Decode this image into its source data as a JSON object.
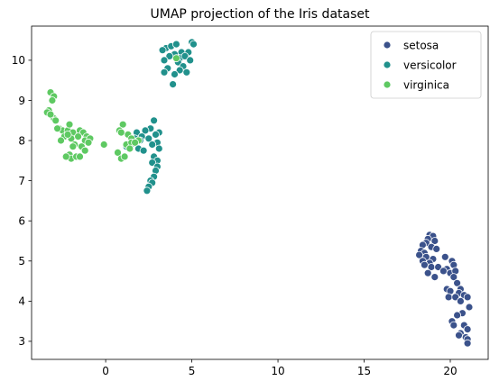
{
  "chart_data": {
    "type": "scatter",
    "title": "UMAP projection of the Iris dataset",
    "xlabel": "",
    "ylabel": "",
    "xlim": [
      -4.3,
      22.2
    ],
    "ylim": [
      2.55,
      10.85
    ],
    "xticks": [
      0,
      5,
      10,
      15,
      20
    ],
    "yticks": [
      3,
      4,
      5,
      6,
      7,
      8,
      9,
      10
    ],
    "grid": false,
    "legend_position": "top-right",
    "series": [
      {
        "name": "setosa",
        "color": "#3b528b",
        "points": [
          [
            18.8,
            5.65
          ],
          [
            19.0,
            5.62
          ],
          [
            18.7,
            5.55
          ],
          [
            19.1,
            5.5
          ],
          [
            18.6,
            5.45
          ],
          [
            18.4,
            5.4
          ],
          [
            18.9,
            5.35
          ],
          [
            19.2,
            5.3
          ],
          [
            18.3,
            5.25
          ],
          [
            18.5,
            5.2
          ],
          [
            18.2,
            5.15
          ],
          [
            18.6,
            5.1
          ],
          [
            19.0,
            5.05
          ],
          [
            19.7,
            5.1
          ],
          [
            18.4,
            5.0
          ],
          [
            18.8,
            4.95
          ],
          [
            18.5,
            4.9
          ],
          [
            18.9,
            4.85
          ],
          [
            19.3,
            4.85
          ],
          [
            20.1,
            5.0
          ],
          [
            20.2,
            4.9
          ],
          [
            19.8,
            4.8
          ],
          [
            19.6,
            4.75
          ],
          [
            20.0,
            4.7
          ],
          [
            18.7,
            4.7
          ],
          [
            19.1,
            4.6
          ],
          [
            20.3,
            4.75
          ],
          [
            20.2,
            4.6
          ],
          [
            20.4,
            4.45
          ],
          [
            20.6,
            4.3
          ],
          [
            19.8,
            4.3
          ],
          [
            20.0,
            4.25
          ],
          [
            20.5,
            4.2
          ],
          [
            19.9,
            4.1
          ],
          [
            20.8,
            4.15
          ],
          [
            21.0,
            4.1
          ],
          [
            20.3,
            4.1
          ],
          [
            20.6,
            4.0
          ],
          [
            21.1,
            3.85
          ],
          [
            20.7,
            3.7
          ],
          [
            20.4,
            3.65
          ],
          [
            20.1,
            3.5
          ],
          [
            20.2,
            3.4
          ],
          [
            20.8,
            3.4
          ],
          [
            21.0,
            3.3
          ],
          [
            20.6,
            3.2
          ],
          [
            20.5,
            3.15
          ],
          [
            20.9,
            3.1
          ],
          [
            21.0,
            3.05
          ],
          [
            21.0,
            2.95
          ]
        ]
      },
      {
        "name": "versicolor",
        "color": "#21918c",
        "points": [
          [
            3.5,
            10.3
          ],
          [
            3.8,
            10.35
          ],
          [
            4.1,
            10.4
          ],
          [
            5.0,
            10.45
          ],
          [
            5.1,
            10.4
          ],
          [
            3.3,
            10.25
          ],
          [
            4.4,
            10.2
          ],
          [
            4.0,
            10.15
          ],
          [
            4.8,
            10.2
          ],
          [
            3.7,
            10.1
          ],
          [
            4.3,
            10.05
          ],
          [
            4.6,
            10.1
          ],
          [
            3.4,
            10.0
          ],
          [
            4.9,
            10.0
          ],
          [
            4.2,
            9.95
          ],
          [
            4.5,
            9.85
          ],
          [
            3.6,
            9.8
          ],
          [
            4.3,
            9.75
          ],
          [
            4.7,
            9.7
          ],
          [
            3.4,
            9.7
          ],
          [
            4.0,
            9.65
          ],
          [
            3.9,
            9.4
          ],
          [
            2.8,
            8.5
          ],
          [
            2.6,
            8.3
          ],
          [
            2.3,
            8.25
          ],
          [
            1.8,
            8.2
          ],
          [
            3.1,
            8.2
          ],
          [
            2.9,
            8.15
          ],
          [
            2.1,
            8.1
          ],
          [
            1.7,
            8.05
          ],
          [
            2.5,
            8.05
          ],
          [
            3.0,
            7.95
          ],
          [
            1.5,
            7.9
          ],
          [
            2.7,
            7.9
          ],
          [
            3.1,
            7.8
          ],
          [
            1.9,
            7.8
          ],
          [
            2.2,
            7.75
          ],
          [
            2.8,
            7.6
          ],
          [
            3.0,
            7.5
          ],
          [
            2.7,
            7.45
          ],
          [
            3.0,
            7.35
          ],
          [
            2.9,
            7.25
          ],
          [
            2.8,
            7.1
          ],
          [
            2.6,
            7.0
          ],
          [
            2.7,
            6.95
          ],
          [
            2.5,
            6.85
          ],
          [
            2.4,
            6.75
          ],
          [
            1.2,
            7.85
          ],
          [
            1.1,
            7.6
          ],
          [
            2.0,
            8.0
          ]
        ]
      },
      {
        "name": "virginica",
        "color": "#5ec962",
        "points": [
          [
            4.1,
            10.05
          ],
          [
            -3.2,
            9.2
          ],
          [
            -3.0,
            9.1
          ],
          [
            -3.1,
            9.0
          ],
          [
            -3.3,
            8.75
          ],
          [
            -3.4,
            8.7
          ],
          [
            -3.1,
            8.6
          ],
          [
            -3.0,
            8.55
          ],
          [
            -2.9,
            8.5
          ],
          [
            -2.7,
            8.3
          ],
          [
            -2.5,
            8.25
          ],
          [
            -2.2,
            8.25
          ],
          [
            -1.9,
            8.2
          ],
          [
            -1.5,
            8.25
          ],
          [
            -1.3,
            8.2
          ],
          [
            -1.1,
            8.1
          ],
          [
            -1.2,
            8.0
          ],
          [
            -0.9,
            8.05
          ],
          [
            -1.0,
            7.95
          ],
          [
            -2.4,
            8.1
          ],
          [
            -2.0,
            8.05
          ],
          [
            -1.8,
            7.9
          ],
          [
            -1.9,
            7.85
          ],
          [
            -1.4,
            7.85
          ],
          [
            -1.2,
            7.75
          ],
          [
            -2.1,
            8.4
          ],
          [
            -0.1,
            7.9
          ],
          [
            -2.1,
            7.65
          ],
          [
            -2.0,
            7.55
          ],
          [
            -1.7,
            7.6
          ],
          [
            -1.5,
            7.6
          ],
          [
            -2.3,
            7.6
          ],
          [
            1.0,
            8.4
          ],
          [
            0.8,
            8.25
          ],
          [
            0.9,
            8.2
          ],
          [
            1.3,
            8.15
          ],
          [
            1.5,
            8.05
          ],
          [
            0.7,
            7.7
          ],
          [
            0.9,
            7.55
          ],
          [
            1.1,
            7.6
          ],
          [
            1.2,
            7.9
          ],
          [
            1.5,
            7.95
          ],
          [
            1.4,
            7.8
          ],
          [
            1.9,
            8.0
          ],
          [
            1.7,
            7.95
          ],
          [
            -2.6,
            8.0
          ],
          [
            -2.2,
            8.15
          ],
          [
            -3.2,
            8.65
          ],
          [
            -2.8,
            8.3
          ],
          [
            -1.6,
            8.1
          ]
        ]
      }
    ]
  }
}
